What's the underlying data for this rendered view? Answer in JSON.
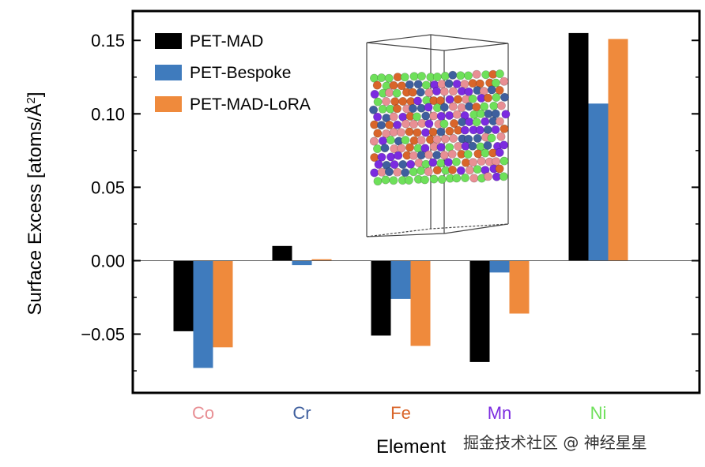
{
  "chart_data": {
    "type": "bar",
    "title": "",
    "xlabel": "Element",
    "ylabel": "Surface Excess [atoms/Å²]",
    "ylim": [
      -0.09,
      0.17
    ],
    "yticks": [
      "0.15",
      "0.10",
      "0.05",
      "0.00",
      "−0.05"
    ],
    "ytick_values": [
      0.15,
      0.1,
      0.05,
      0.0,
      -0.05
    ],
    "categories": [
      "Co",
      "Cr",
      "Fe",
      "Mn",
      "Ni"
    ],
    "category_colors": [
      "#e88f94",
      "#3f5f9e",
      "#d9652a",
      "#7b2be0",
      "#6ee05a"
    ],
    "series": [
      {
        "name": "PET-MAD",
        "color": "#000000",
        "values": [
          -0.048,
          0.01,
          -0.051,
          -0.069,
          0.155
        ]
      },
      {
        "name": "PET-Bespoke",
        "color": "#3f7bbd",
        "values": [
          -0.073,
          -0.003,
          -0.026,
          -0.008,
          0.107
        ]
      },
      {
        "name": "PET-MAD-LoRA",
        "color": "#ef8a3c",
        "values": [
          -0.059,
          0.001,
          -0.058,
          -0.036,
          0.151
        ]
      }
    ],
    "legend_position": "top-left",
    "zero_line": true,
    "grid": false,
    "inset": {
      "description_icon": "atomistic-slab-icon",
      "atom_colors": [
        "#e88f94",
        "#3f5f9e",
        "#d9652a",
        "#7b2be0",
        "#6ee05a"
      ]
    }
  },
  "watermark": {
    "text": "掘金技术社区 @ 神经星星"
  }
}
